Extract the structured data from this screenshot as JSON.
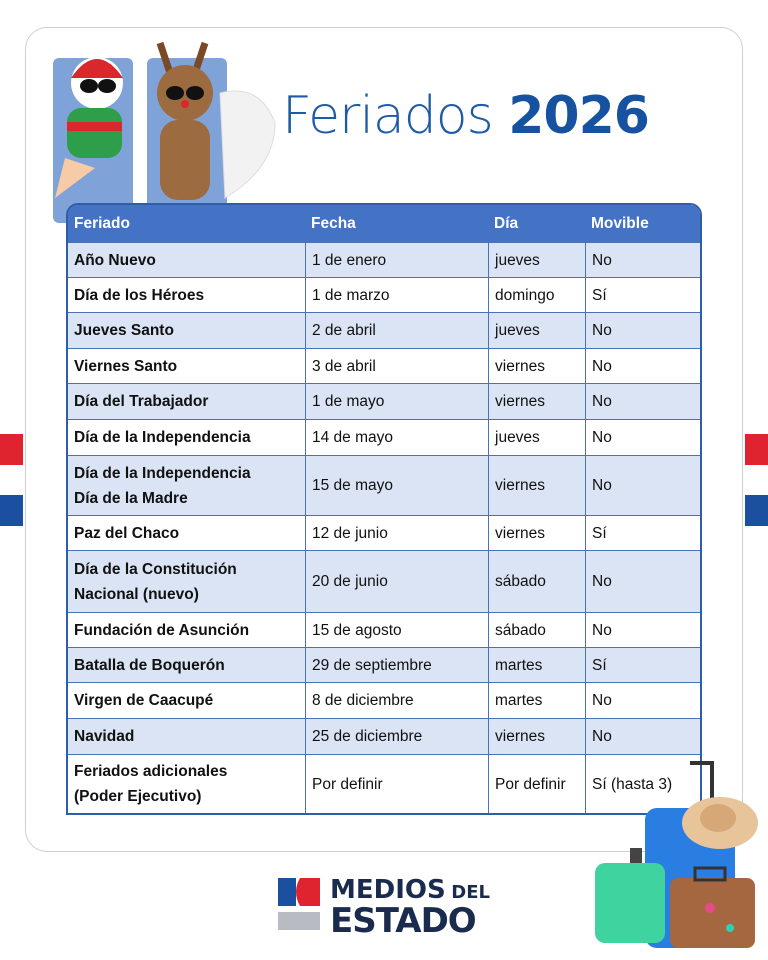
{
  "title": {
    "word": "Feriados",
    "year": "2026"
  },
  "table": {
    "headers": [
      "Feriado",
      "Fecha",
      "Día",
      "Movible"
    ],
    "rows": [
      {
        "feriado": "Año Nuevo",
        "fecha": "1 de enero",
        "dia": "jueves",
        "movible": "No"
      },
      {
        "feriado": "Día de los Héroes",
        "fecha": "1 de marzo",
        "dia": "domingo",
        "movible": "Sí"
      },
      {
        "feriado": "Jueves Santo",
        "fecha": "2 de abril",
        "dia": "jueves",
        "movible": "No"
      },
      {
        "feriado": "Viernes Santo",
        "fecha": "3 de abril",
        "dia": "viernes",
        "movible": "No"
      },
      {
        "feriado": "Día del Trabajador",
        "fecha": "1 de mayo",
        "dia": "viernes",
        "movible": "No"
      },
      {
        "feriado": "Día de la Independencia",
        "fecha": "14 de mayo",
        "dia": "jueves",
        "movible": "No"
      },
      {
        "feriado": "Día de la Independencia\nDía de la Madre",
        "fecha": "15 de mayo",
        "dia": "viernes",
        "movible": "No"
      },
      {
        "feriado": "Paz del Chaco",
        "fecha": "12 de junio",
        "dia": "viernes",
        "movible": "Sí"
      },
      {
        "feriado": "Día de la Constitución\nNacional (nuevo)",
        "fecha": "20 de junio",
        "dia": "sábado",
        "movible": "No"
      },
      {
        "feriado": "Fundación de Asunción",
        "fecha": "15 de agosto",
        "dia": "sábado",
        "movible": "No"
      },
      {
        "feriado": "Batalla de Boquerón",
        "fecha": "29 de septiembre",
        "dia": "martes",
        "movible": "Sí"
      },
      {
        "feriado": "Virgen de Caacupé",
        "fecha": "8 de diciembre",
        "dia": "martes",
        "movible": "No"
      },
      {
        "feriado": "Navidad",
        "fecha": "25 de diciembre",
        "dia": "viernes",
        "movible": "No"
      },
      {
        "feriado": "Feriados adicionales\n(Poder Ejecutivo)",
        "fecha": "Por definir",
        "dia": "Por definir",
        "movible": "Sí (hasta 3)"
      }
    ]
  },
  "logo": {
    "line1": "MEDIOS",
    "line1_small": "DEL",
    "line2": "ESTADO"
  },
  "colors": {
    "header": "#4472c4",
    "alt_row": "#dbe4f4",
    "title": "#1f5aa6",
    "flag_red": "#e0242f",
    "flag_blue": "#1b4fa0"
  }
}
